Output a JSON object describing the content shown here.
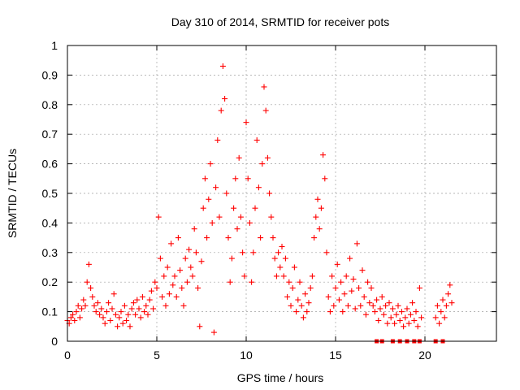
{
  "chart_data": {
    "type": "scatter",
    "title": "Day 310 of 2014, SRMTID for receiver pots",
    "xlabel": "GPS time / hours",
    "ylabel": "SRMTID / TECUs",
    "xlim": [
      0,
      24
    ],
    "ylim": [
      0,
      1
    ],
    "x_ticks": [
      0,
      5,
      10,
      15,
      20
    ],
    "x_tick_labels": [
      "0",
      "5",
      "10",
      "15",
      "20"
    ],
    "y_ticks": [
      0,
      0.1,
      0.2,
      0.3,
      0.4,
      0.5,
      0.6,
      0.7,
      0.8,
      0.9,
      1
    ],
    "y_tick_labels": [
      "0",
      "0.1",
      "0.2",
      "0.3",
      "0.4",
      "0.5",
      "0.6",
      "0.7",
      "0.8",
      "0.9",
      "1"
    ],
    "grid": true,
    "marker_color": "#ff0000",
    "series": [
      {
        "name": "SRMTID",
        "marker": "plus",
        "points": [
          [
            0.0,
            0.07
          ],
          [
            0.1,
            0.06
          ],
          [
            0.2,
            0.08
          ],
          [
            0.3,
            0.09
          ],
          [
            0.4,
            0.07
          ],
          [
            0.5,
            0.1
          ],
          [
            0.6,
            0.12
          ],
          [
            0.7,
            0.08
          ],
          [
            0.8,
            0.11
          ],
          [
            0.9,
            0.14
          ],
          [
            1.0,
            0.12
          ],
          [
            1.1,
            0.2
          ],
          [
            1.2,
            0.26
          ],
          [
            1.3,
            0.18
          ],
          [
            1.4,
            0.15
          ],
          [
            1.5,
            0.12
          ],
          [
            1.6,
            0.1
          ],
          [
            1.7,
            0.13
          ],
          [
            1.8,
            0.09
          ],
          [
            1.9,
            0.11
          ],
          [
            2.0,
            0.08
          ],
          [
            2.1,
            0.06
          ],
          [
            2.2,
            0.1
          ],
          [
            2.3,
            0.13
          ],
          [
            2.4,
            0.07
          ],
          [
            2.5,
            0.11
          ],
          [
            2.6,
            0.16
          ],
          [
            2.7,
            0.09
          ],
          [
            2.8,
            0.05
          ],
          [
            2.9,
            0.08
          ],
          [
            3.0,
            0.1
          ],
          [
            3.1,
            0.06
          ],
          [
            3.2,
            0.12
          ],
          [
            3.3,
            0.07
          ],
          [
            3.4,
            0.09
          ],
          [
            3.5,
            0.05
          ],
          [
            3.6,
            0.11
          ],
          [
            3.7,
            0.13
          ],
          [
            3.8,
            0.09
          ],
          [
            3.9,
            0.14
          ],
          [
            4.0,
            0.11
          ],
          [
            4.1,
            0.08
          ],
          [
            4.2,
            0.15
          ],
          [
            4.3,
            0.1
          ],
          [
            4.4,
            0.12
          ],
          [
            4.5,
            0.09
          ],
          [
            4.6,
            0.14
          ],
          [
            4.7,
            0.17
          ],
          [
            4.8,
            0.11
          ],
          [
            4.9,
            0.2
          ],
          [
            5.0,
            0.18
          ],
          [
            5.1,
            0.42
          ],
          [
            5.2,
            0.28
          ],
          [
            5.3,
            0.15
          ],
          [
            5.4,
            0.22
          ],
          [
            5.5,
            0.12
          ],
          [
            5.6,
            0.25
          ],
          [
            5.7,
            0.16
          ],
          [
            5.8,
            0.33
          ],
          [
            5.9,
            0.19
          ],
          [
            6.0,
            0.22
          ],
          [
            6.1,
            0.15
          ],
          [
            6.2,
            0.35
          ],
          [
            6.3,
            0.24
          ],
          [
            6.4,
            0.18
          ],
          [
            6.5,
            0.12
          ],
          [
            6.6,
            0.28
          ],
          [
            6.7,
            0.2
          ],
          [
            6.8,
            0.31
          ],
          [
            6.9,
            0.25
          ],
          [
            7.0,
            0.22
          ],
          [
            7.1,
            0.38
          ],
          [
            7.2,
            0.3
          ],
          [
            7.3,
            0.18
          ],
          [
            7.4,
            0.05
          ],
          [
            7.5,
            0.27
          ],
          [
            7.6,
            0.45
          ],
          [
            7.7,
            0.55
          ],
          [
            7.8,
            0.35
          ],
          [
            7.9,
            0.48
          ],
          [
            8.0,
            0.6
          ],
          [
            8.1,
            0.4
          ],
          [
            8.2,
            0.03
          ],
          [
            8.3,
            0.52
          ],
          [
            8.4,
            0.68
          ],
          [
            8.5,
            0.42
          ],
          [
            8.6,
            0.78
          ],
          [
            8.7,
            0.93
          ],
          [
            8.8,
            0.82
          ],
          [
            8.9,
            0.5
          ],
          [
            9.0,
            0.35
          ],
          [
            9.1,
            0.2
          ],
          [
            9.2,
            0.28
          ],
          [
            9.3,
            0.45
          ],
          [
            9.4,
            0.55
          ],
          [
            9.5,
            0.38
          ],
          [
            9.6,
            0.62
          ],
          [
            9.7,
            0.42
          ],
          [
            9.8,
            0.3
          ],
          [
            9.9,
            0.22
          ],
          [
            10.0,
            0.74
          ],
          [
            10.1,
            0.55
          ],
          [
            10.2,
            0.4
          ],
          [
            10.3,
            0.2
          ],
          [
            10.4,
            0.3
          ],
          [
            10.5,
            0.45
          ],
          [
            10.6,
            0.68
          ],
          [
            10.7,
            0.52
          ],
          [
            10.8,
            0.35
          ],
          [
            10.9,
            0.6
          ],
          [
            11.0,
            0.86
          ],
          [
            11.1,
            0.78
          ],
          [
            11.2,
            0.62
          ],
          [
            11.3,
            0.5
          ],
          [
            11.4,
            0.42
          ],
          [
            11.5,
            0.35
          ],
          [
            11.6,
            0.28
          ],
          [
            11.7,
            0.22
          ],
          [
            11.8,
            0.3
          ],
          [
            11.9,
            0.25
          ],
          [
            12.0,
            0.32
          ],
          [
            12.1,
            0.22
          ],
          [
            12.2,
            0.28
          ],
          [
            12.3,
            0.15
          ],
          [
            12.4,
            0.2
          ],
          [
            12.5,
            0.12
          ],
          [
            12.6,
            0.18
          ],
          [
            12.7,
            0.25
          ],
          [
            12.8,
            0.1
          ],
          [
            12.9,
            0.14
          ],
          [
            13.0,
            0.2
          ],
          [
            13.1,
            0.12
          ],
          [
            13.2,
            0.08
          ],
          [
            13.3,
            0.16
          ],
          [
            13.4,
            0.1
          ],
          [
            13.5,
            0.13
          ],
          [
            13.6,
            0.18
          ],
          [
            13.7,
            0.22
          ],
          [
            13.8,
            0.35
          ],
          [
            13.9,
            0.42
          ],
          [
            14.0,
            0.48
          ],
          [
            14.1,
            0.38
          ],
          [
            14.2,
            0.45
          ],
          [
            14.3,
            0.63
          ],
          [
            14.4,
            0.55
          ],
          [
            14.5,
            0.3
          ],
          [
            14.6,
            0.15
          ],
          [
            14.7,
            0.1
          ],
          [
            14.8,
            0.22
          ],
          [
            14.9,
            0.12
          ],
          [
            15.0,
            0.18
          ],
          [
            15.1,
            0.26
          ],
          [
            15.2,
            0.14
          ],
          [
            15.3,
            0.2
          ],
          [
            15.4,
            0.1
          ],
          [
            15.5,
            0.16
          ],
          [
            15.6,
            0.22
          ],
          [
            15.7,
            0.12
          ],
          [
            15.8,
            0.28
          ],
          [
            15.9,
            0.17
          ],
          [
            16.0,
            0.21
          ],
          [
            16.1,
            0.11
          ],
          [
            16.2,
            0.33
          ],
          [
            16.3,
            0.18
          ],
          [
            16.4,
            0.12
          ],
          [
            16.5,
            0.24
          ],
          [
            16.6,
            0.15
          ],
          [
            16.7,
            0.09
          ],
          [
            16.8,
            0.2
          ],
          [
            16.9,
            0.13
          ],
          [
            17.0,
            0.18
          ],
          [
            17.1,
            0.12
          ],
          [
            17.2,
            0.1
          ],
          [
            17.3,
            0.14
          ],
          [
            17.4,
            0.07
          ],
          [
            17.5,
            0.11
          ],
          [
            17.6,
            0.15
          ],
          [
            17.7,
            0.09
          ],
          [
            17.8,
            0.12
          ],
          [
            17.9,
            0.06
          ],
          [
            18.0,
            0.13
          ],
          [
            18.1,
            0.08
          ],
          [
            18.2,
            0.11
          ],
          [
            18.3,
            0.06
          ],
          [
            18.4,
            0.09
          ],
          [
            18.5,
            0.12
          ],
          [
            18.6,
            0.07
          ],
          [
            18.7,
            0.1
          ],
          [
            18.8,
            0.05
          ],
          [
            18.9,
            0.08
          ],
          [
            19.0,
            0.11
          ],
          [
            19.1,
            0.06
          ],
          [
            19.2,
            0.09
          ],
          [
            19.3,
            0.13
          ],
          [
            19.4,
            0.07
          ],
          [
            19.5,
            0.1
          ],
          [
            19.6,
            0.05
          ],
          [
            19.7,
            0.18
          ],
          [
            19.8,
            0.08
          ],
          [
            20.6,
            0.08
          ],
          [
            20.7,
            0.12
          ],
          [
            20.8,
            0.06
          ],
          [
            20.9,
            0.1
          ],
          [
            21.0,
            0.14
          ],
          [
            21.1,
            0.08
          ],
          [
            21.2,
            0.12
          ],
          [
            21.3,
            0.16
          ],
          [
            21.4,
            0.19
          ],
          [
            21.5,
            0.13
          ]
        ]
      },
      {
        "name": "zero-level markers",
        "marker": "square",
        "points": [
          [
            17.3,
            0
          ],
          [
            17.6,
            0
          ],
          [
            18.2,
            0
          ],
          [
            18.6,
            0
          ],
          [
            19.0,
            0
          ],
          [
            19.4,
            0
          ],
          [
            19.7,
            0
          ],
          [
            20.6,
            0
          ],
          [
            21.0,
            0
          ]
        ]
      }
    ]
  }
}
